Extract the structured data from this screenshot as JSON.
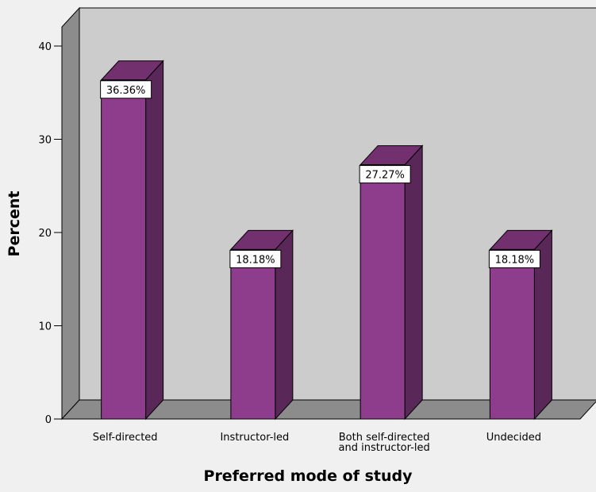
{
  "chart_data": {
    "type": "bar",
    "categories": [
      [
        "Self-directed"
      ],
      [
        "Instructor-led"
      ],
      [
        "Both self-directed",
        "and instructor-led"
      ],
      [
        "Undecided"
      ]
    ],
    "values": [
      36.36,
      18.18,
      27.27,
      18.18
    ],
    "data_labels": [
      "36.36%",
      "18.18%",
      "27.27%",
      "18.18%"
    ],
    "xlabel": "Preferred mode of study",
    "ylabel": "Percent",
    "ylim": [
      0,
      43
    ],
    "yticks": [
      0,
      10,
      20,
      30,
      40
    ],
    "grid": false,
    "style": "3d"
  },
  "colors": {
    "background": "#f0f0f0",
    "wall": "#cccccc",
    "floor": "#8c8c8c",
    "side_wall": "#8c8c8c",
    "bar_front": "#8e3c8c",
    "bar_side": "#5a2858",
    "bar_top": "#73306f",
    "label_box": "#ffffff"
  }
}
